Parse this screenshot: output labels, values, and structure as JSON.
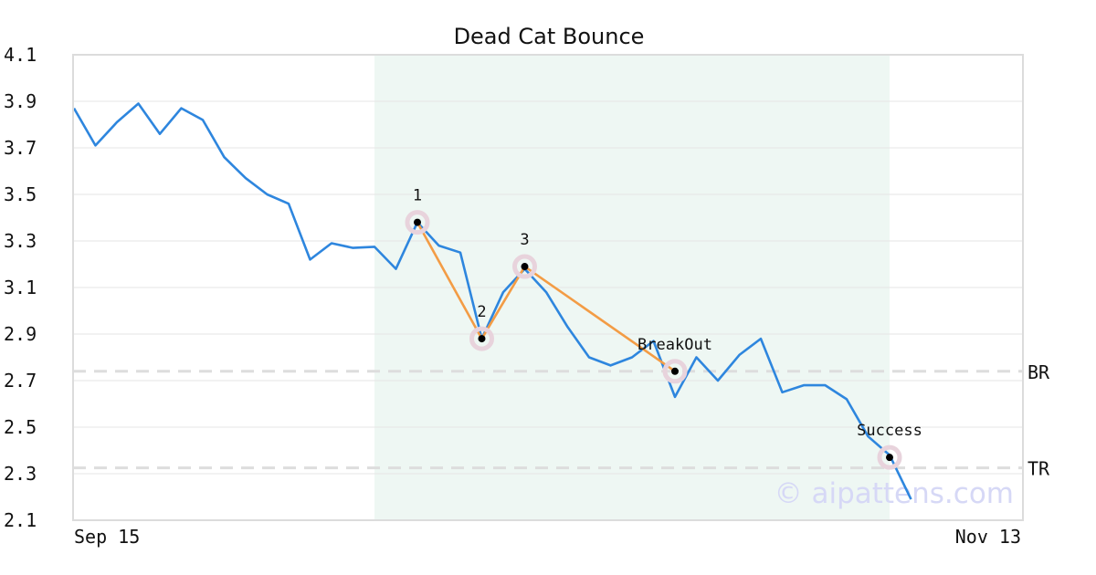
{
  "chart_data": {
    "type": "line",
    "title": "Dead Cat Bounce",
    "watermark": "© aipattens.com",
    "xlabel": "",
    "ylabel": "",
    "x_tick_labels": [
      "Sep 15",
      "Nov 13"
    ],
    "y_ticks": [
      "4.1",
      "3.9",
      "3.7",
      "3.5",
      "3.3",
      "3.1",
      "2.9",
      "2.7",
      "2.5",
      "2.3",
      "2.1"
    ],
    "ylim": [
      2.1,
      4.1
    ],
    "grid": "horizontal",
    "colors": {
      "price": "#2e86de",
      "pattern": "#f39c45",
      "highlight_band": "#eef7f3",
      "level_line": "#dddddd",
      "marker_halo": "#e8d3dc",
      "marker_dot": "#000000"
    },
    "series": [
      {
        "values": [
          3.87,
          3.71,
          3.81,
          3.89,
          3.76,
          3.87,
          3.82,
          3.66,
          3.57,
          3.5,
          3.46,
          3.22,
          3.29,
          3.27,
          3.275,
          3.18,
          3.38,
          3.28,
          3.25,
          2.88,
          3.08,
          3.18,
          3.08,
          2.93,
          2.8,
          2.765,
          2.8,
          2.87,
          2.63,
          2.8,
          2.7,
          2.81,
          2.88,
          2.65,
          2.68,
          2.68,
          2.62,
          2.46,
          2.38,
          2.19
        ]
      }
    ],
    "highlight_range": [
      14,
      38
    ],
    "pattern_points": [
      {
        "label": "1",
        "index": 16,
        "value": 3.38
      },
      {
        "label": "2",
        "index": 19,
        "value": 2.88
      },
      {
        "label": "3",
        "index": 21,
        "value": 3.19
      },
      {
        "label": "BreakOut",
        "index": 28,
        "value": 2.74
      },
      {
        "label": "Success",
        "index": 38,
        "value": 2.37
      }
    ],
    "levels": [
      {
        "label": "BR",
        "value": 2.74
      },
      {
        "label": "TR",
        "value": 2.325
      }
    ]
  }
}
